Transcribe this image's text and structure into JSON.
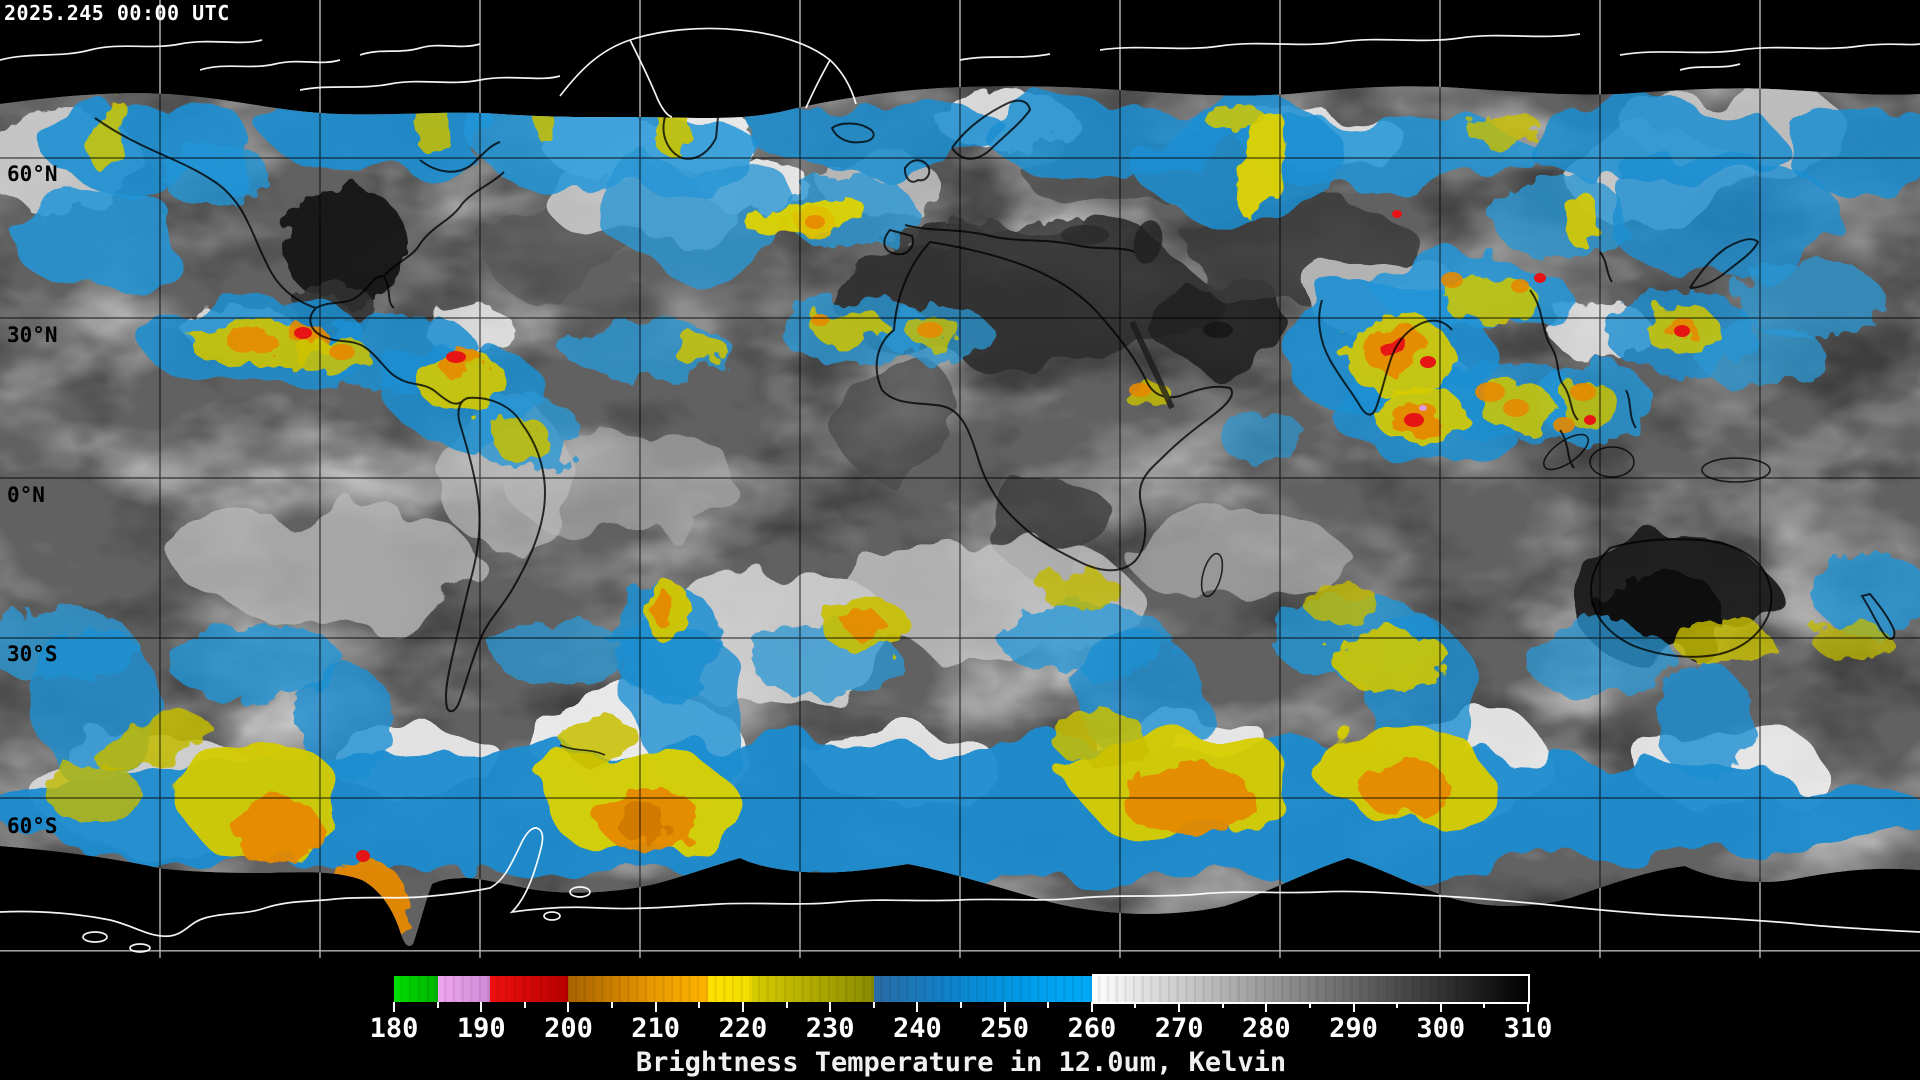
{
  "header": {
    "timestamp": "2025.245 00:00 UTC"
  },
  "map": {
    "latitude_labels": [
      "60°N",
      "30°N",
      "0°N",
      "30°S",
      "60°S"
    ],
    "graticule": {
      "lon_spacing_deg": 30,
      "lat_spacing_deg": 30
    },
    "background_color": "#000000",
    "coastline_over_data_color": "#000000",
    "coastline_over_void_color": "#ffffff"
  },
  "colorbar": {
    "title": "Brightness Temperature in 12.0um, Kelvin",
    "unit": "Kelvin",
    "min_k": 180,
    "max_k": 310,
    "tick_step_k": 10,
    "minor_tick_step_k": 5,
    "tick_labels": [
      "180",
      "190",
      "200",
      "210",
      "220",
      "230",
      "240",
      "250",
      "260",
      "270",
      "280",
      "290",
      "300",
      "310"
    ],
    "segments": [
      {
        "from_k": 180,
        "to_k": 185,
        "color_start": "#00e000",
        "color_end": "#00b400"
      },
      {
        "from_k": 185,
        "to_k": 191,
        "color_start": "#f0a8f0",
        "color_end": "#cf8ad6"
      },
      {
        "from_k": 191,
        "to_k": 200,
        "color_start": "#f01010",
        "color_end": "#b80000"
      },
      {
        "from_k": 200,
        "to_k": 216,
        "color_start": "#a86200",
        "color_end": "#ffb400"
      },
      {
        "from_k": 216,
        "to_k": 221,
        "color_start": "#ffe000",
        "color_end": "#f0de00"
      },
      {
        "from_k": 221,
        "to_k": 235,
        "color_start": "#d6cc00",
        "color_end": "#8a8a00"
      },
      {
        "from_k": 235,
        "to_k": 260,
        "color_start": "#2a6ba4",
        "color_end": "#00aaf8"
      },
      {
        "from_k": 260,
        "to_k": 310,
        "color_start": "#ffffff",
        "color_end": "#000000"
      }
    ]
  }
}
